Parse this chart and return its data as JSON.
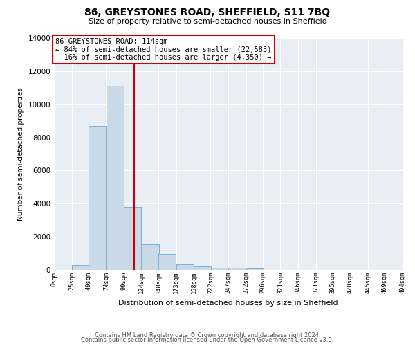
{
  "title": "86, GREYSTONES ROAD, SHEFFIELD, S11 7BQ",
  "subtitle": "Size of property relative to semi-detached houses in Sheffield",
  "xlabel": "Distribution of semi-detached houses by size in Sheffield",
  "ylabel": "Number of semi-detached properties",
  "property_label": "86 GREYSTONES ROAD: 114sqm",
  "pct_smaller": 84,
  "count_smaller": 22585,
  "pct_larger": 16,
  "count_larger": 4350,
  "bar_left_edges": [
    0,
    25,
    49,
    74,
    99,
    124,
    148,
    173,
    198,
    222,
    247,
    272,
    296,
    321,
    346,
    371,
    395,
    420,
    445,
    469
  ],
  "bar_heights": [
    0,
    300,
    8700,
    11100,
    3800,
    1550,
    950,
    350,
    200,
    130,
    120,
    100,
    0,
    0,
    0,
    0,
    0,
    0,
    0,
    0
  ],
  "bar_color": "#c9d9e8",
  "bar_edgecolor": "#7fafd4",
  "vline_x": 114,
  "vline_color": "#cc0000",
  "annotation_box_color": "#cc0000",
  "ylim": [
    0,
    14000
  ],
  "xlim": [
    0,
    494
  ],
  "tick_labels": [
    "0sqm",
    "25sqm",
    "49sqm",
    "74sqm",
    "99sqm",
    "124sqm",
    "148sqm",
    "173sqm",
    "198sqm",
    "222sqm",
    "247sqm",
    "272sqm",
    "296sqm",
    "321sqm",
    "346sqm",
    "371sqm",
    "395sqm",
    "420sqm",
    "445sqm",
    "469sqm",
    "494sqm"
  ],
  "tick_positions": [
    0,
    25,
    49,
    74,
    99,
    124,
    148,
    173,
    198,
    222,
    247,
    272,
    296,
    321,
    346,
    371,
    395,
    420,
    445,
    469,
    494
  ],
  "background_color": "#e8eef4",
  "grid_color": "#ffffff",
  "footer_line1": "Contains HM Land Registry data © Crown copyright and database right 2024.",
  "footer_line2": "Contains public sector information licensed under the Open Government Licence v3.0."
}
